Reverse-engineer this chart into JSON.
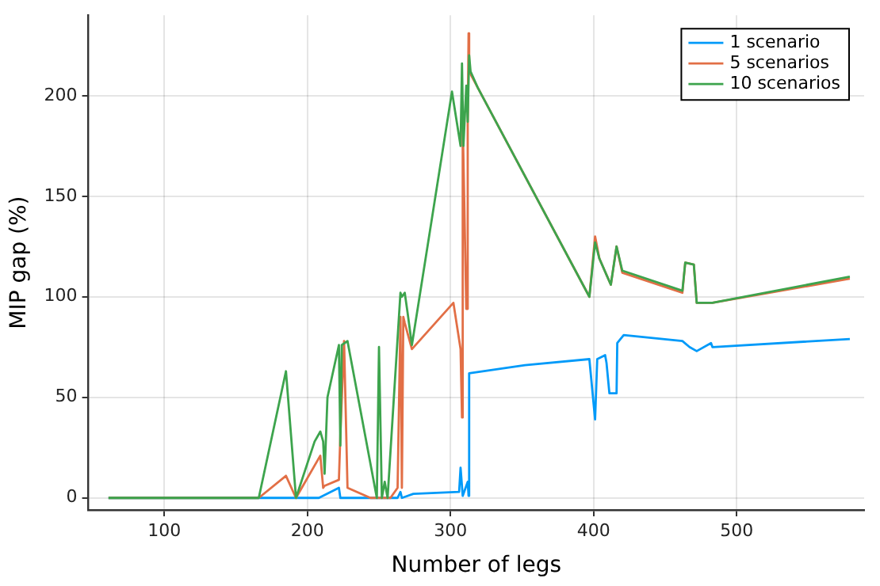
{
  "chart_data": {
    "type": "line",
    "xlabel": "Number of legs",
    "ylabel": "MIP gap (%)",
    "xlim": [
      47,
      589
    ],
    "ylim": [
      -6,
      240
    ],
    "xticks": [
      100,
      200,
      300,
      400,
      500
    ],
    "yticks": [
      0,
      50,
      100,
      150,
      200
    ],
    "grid": true,
    "legend": "top right",
    "marker": "none",
    "line_style": "solid",
    "series": [
      {
        "name": "1 scenario",
        "color": "#009af9",
        "x": [
          61,
          166,
          208,
          222,
          223,
          263,
          265,
          266,
          274,
          306,
          307,
          308.5,
          312,
          312.6,
          313,
          352,
          397,
          401,
          402.5,
          408,
          409,
          411,
          416,
          416.5,
          421,
          462,
          467,
          472,
          482,
          483,
          579
        ],
        "values": [
          0,
          0,
          0,
          5,
          0,
          0,
          3,
          0,
          2,
          3,
          15,
          1,
          8,
          1,
          62,
          66,
          69,
          39,
          69,
          71,
          67,
          52,
          52,
          77,
          81,
          78,
          75,
          73,
          77,
          75,
          79
        ]
      },
      {
        "name": "5 scenarios",
        "color": "#e26f46",
        "x": [
          61,
          166,
          185,
          192,
          209,
          211,
          212,
          222,
          223,
          225.6,
          228,
          244,
          248,
          252,
          258,
          263,
          265,
          266,
          267,
          268,
          273,
          302,
          307,
          308,
          308.5,
          311,
          312,
          312.6,
          313,
          319,
          397,
          401,
          404,
          412,
          416,
          420,
          462,
          464,
          470,
          472,
          483,
          579
        ],
        "values": [
          0,
          0,
          11,
          0,
          21,
          5,
          6,
          9,
          31,
          78,
          5,
          0,
          0,
          0,
          0,
          5,
          90,
          5,
          90,
          87,
          74,
          97,
          74,
          40,
          188,
          94,
          185,
          231,
          212,
          204,
          100,
          130,
          119,
          106,
          125,
          112,
          102,
          117,
          116,
          97,
          97,
          109
        ]
      },
      {
        "name": "10 scenarios",
        "color": "#3da44d",
        "x": [
          61,
          166,
          185,
          192,
          205,
          209,
          211,
          212,
          214,
          222,
          223,
          224,
          228,
          248.5,
          250,
          252,
          254,
          256,
          265,
          266,
          268,
          270,
          273,
          301,
          307,
          308,
          309,
          311,
          312,
          313,
          314,
          319,
          397,
          401,
          404,
          412,
          416,
          420,
          462,
          464,
          470,
          472,
          483,
          579
        ],
        "values": [
          0,
          0,
          63,
          0,
          28,
          33,
          28,
          12,
          50,
          76,
          26,
          76,
          78,
          0,
          75,
          0,
          8,
          0,
          102,
          100,
          102,
          92,
          76,
          202,
          175,
          216,
          175,
          205,
          187,
          220,
          212,
          204,
          100,
          127,
          119,
          106,
          125,
          113,
          103,
          117,
          116,
          97,
          97,
          110
        ]
      }
    ]
  }
}
